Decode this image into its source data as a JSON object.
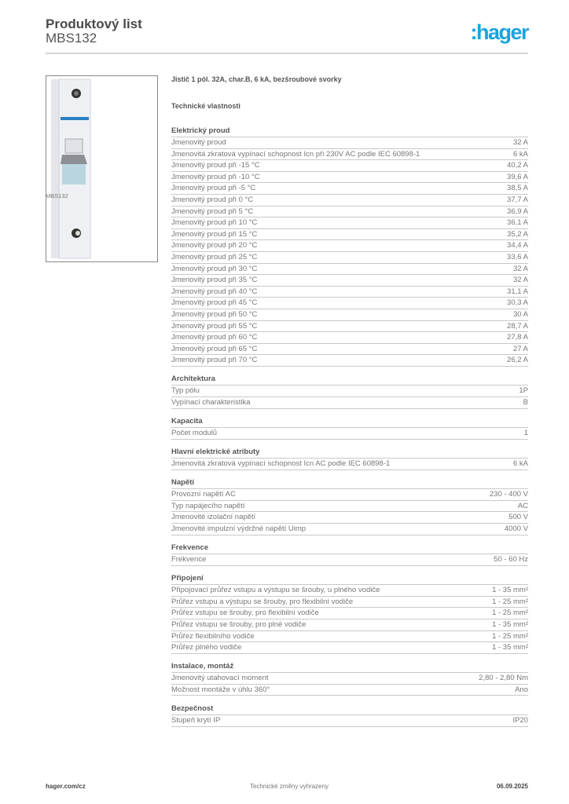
{
  "header": {
    "title": "Produktový list",
    "subtitle": "MBS132",
    "logo": ":hager",
    "logo_color": "#1aa3e0"
  },
  "image_caption": "MBS132",
  "product_name": "Jistič 1 pól. 32A, char.B, 6 kA, bezšroubové svorky",
  "tech_title": "Technické vlastnosti",
  "sections": [
    {
      "title": "Elektrický proud",
      "rows": [
        [
          "Jmenovitý proud",
          "32 A"
        ],
        [
          "Jmenovitá zkratová vypínací schopnost Icn při 230V AC podle IEC 60898-1",
          "6 kA"
        ],
        [
          "Jmenovitý proud při -15 °C",
          "40,2 A"
        ],
        [
          "Jmenovitý proud při -10 °C",
          "39,6 A"
        ],
        [
          "Jmenovitý proud při -5 °C",
          "38,5 A"
        ],
        [
          "Jmenovitý proud při 0 °C",
          "37,7 A"
        ],
        [
          "Jmenovitý proud při 5 °C",
          "36,9 A"
        ],
        [
          "Jmenovitý proud při 10 °C",
          "36,1 A"
        ],
        [
          "Jmenovitý proud při 15 °C",
          "35,2 A"
        ],
        [
          "Jmenovitý proud při 20 °C",
          "34,4 A"
        ],
        [
          "Jmenovitý proud při 25 °C",
          "33,6 A"
        ],
        [
          "Jmenovitý proud při 30 °C",
          "32 A"
        ],
        [
          "Jmenovitý proud při 35 °C",
          "32 A"
        ],
        [
          "Jmenovitý proud při 40 °C",
          "31,1 A"
        ],
        [
          "Jmenovitý proud při 45 °C",
          "30,3 A"
        ],
        [
          "Jmenovitý proud při 50 °C",
          "30 A"
        ],
        [
          "Jmenovitý proud při 55 °C",
          "28,7 A"
        ],
        [
          "Jmenovitý proud při 60 °C",
          "27,8 A"
        ],
        [
          "Jmenovitý proud při 65 °C",
          "27 A"
        ],
        [
          "Jmenovitý proud při 70 °C",
          "26,2 A"
        ]
      ]
    },
    {
      "title": "Architektura",
      "rows": [
        [
          "Typ pólu",
          "1P"
        ],
        [
          "Vypínací charakteristika",
          "B"
        ]
      ]
    },
    {
      "title": "Kapacita",
      "rows": [
        [
          "Počet modulů",
          "1"
        ]
      ]
    },
    {
      "title": "Hlavní elektrické atributy",
      "rows": [
        [
          "Jmenovitá zkratová vypínací schopnost Icn AC podle IEC 60898-1",
          "6 kA"
        ]
      ]
    },
    {
      "title": "Napětí",
      "rows": [
        [
          "Provozní napětí AC",
          "230 - 400 V"
        ],
        [
          "Typ napájecího napětí",
          "AC"
        ],
        [
          "Jmenovité izolační napětí",
          "500 V"
        ],
        [
          "Jmenovité impulzní výdržné napětí Uimp",
          "4000 V"
        ]
      ]
    },
    {
      "title": "Frekvence",
      "rows": [
        [
          "Frekvence",
          "50 - 60 Hz"
        ]
      ]
    },
    {
      "title": "Připojení",
      "rows": [
        [
          "Připojovací průřez vstupu a výstupu se šrouby, u plného vodiče",
          "1 - 35 mm²"
        ],
        [
          "Průřez vstupu a výstupu se šrouby, pro flexibilní vodiče",
          "1 - 25 mm²"
        ],
        [
          "Průřez vstupu se šrouby, pro flexibilní vodiče",
          "1 - 25 mm²"
        ],
        [
          "Průřez vstupu se šrouby, pro plné vodiče",
          "1 - 35 mm²"
        ],
        [
          "Průřez flexibilního vodiče",
          "1 - 25 mm²"
        ],
        [
          "Průřez plného vodiče",
          "1 - 35 mm²"
        ]
      ]
    },
    {
      "title": "Instalace, montáž",
      "rows": [
        [
          "Jmenovitý utahovací moment",
          "2,80 - 2,80 Nm"
        ],
        [
          "Možnost montáže v úhlu 360°",
          "Ano"
        ]
      ]
    },
    {
      "title": "Bezpečnost",
      "rows": [
        [
          "Stupeň krytí IP",
          "IP20"
        ]
      ]
    }
  ],
  "footer": {
    "left": "hager.com/cz",
    "center": "Technické změny vyhrazeny",
    "right": "06.09.2025"
  }
}
